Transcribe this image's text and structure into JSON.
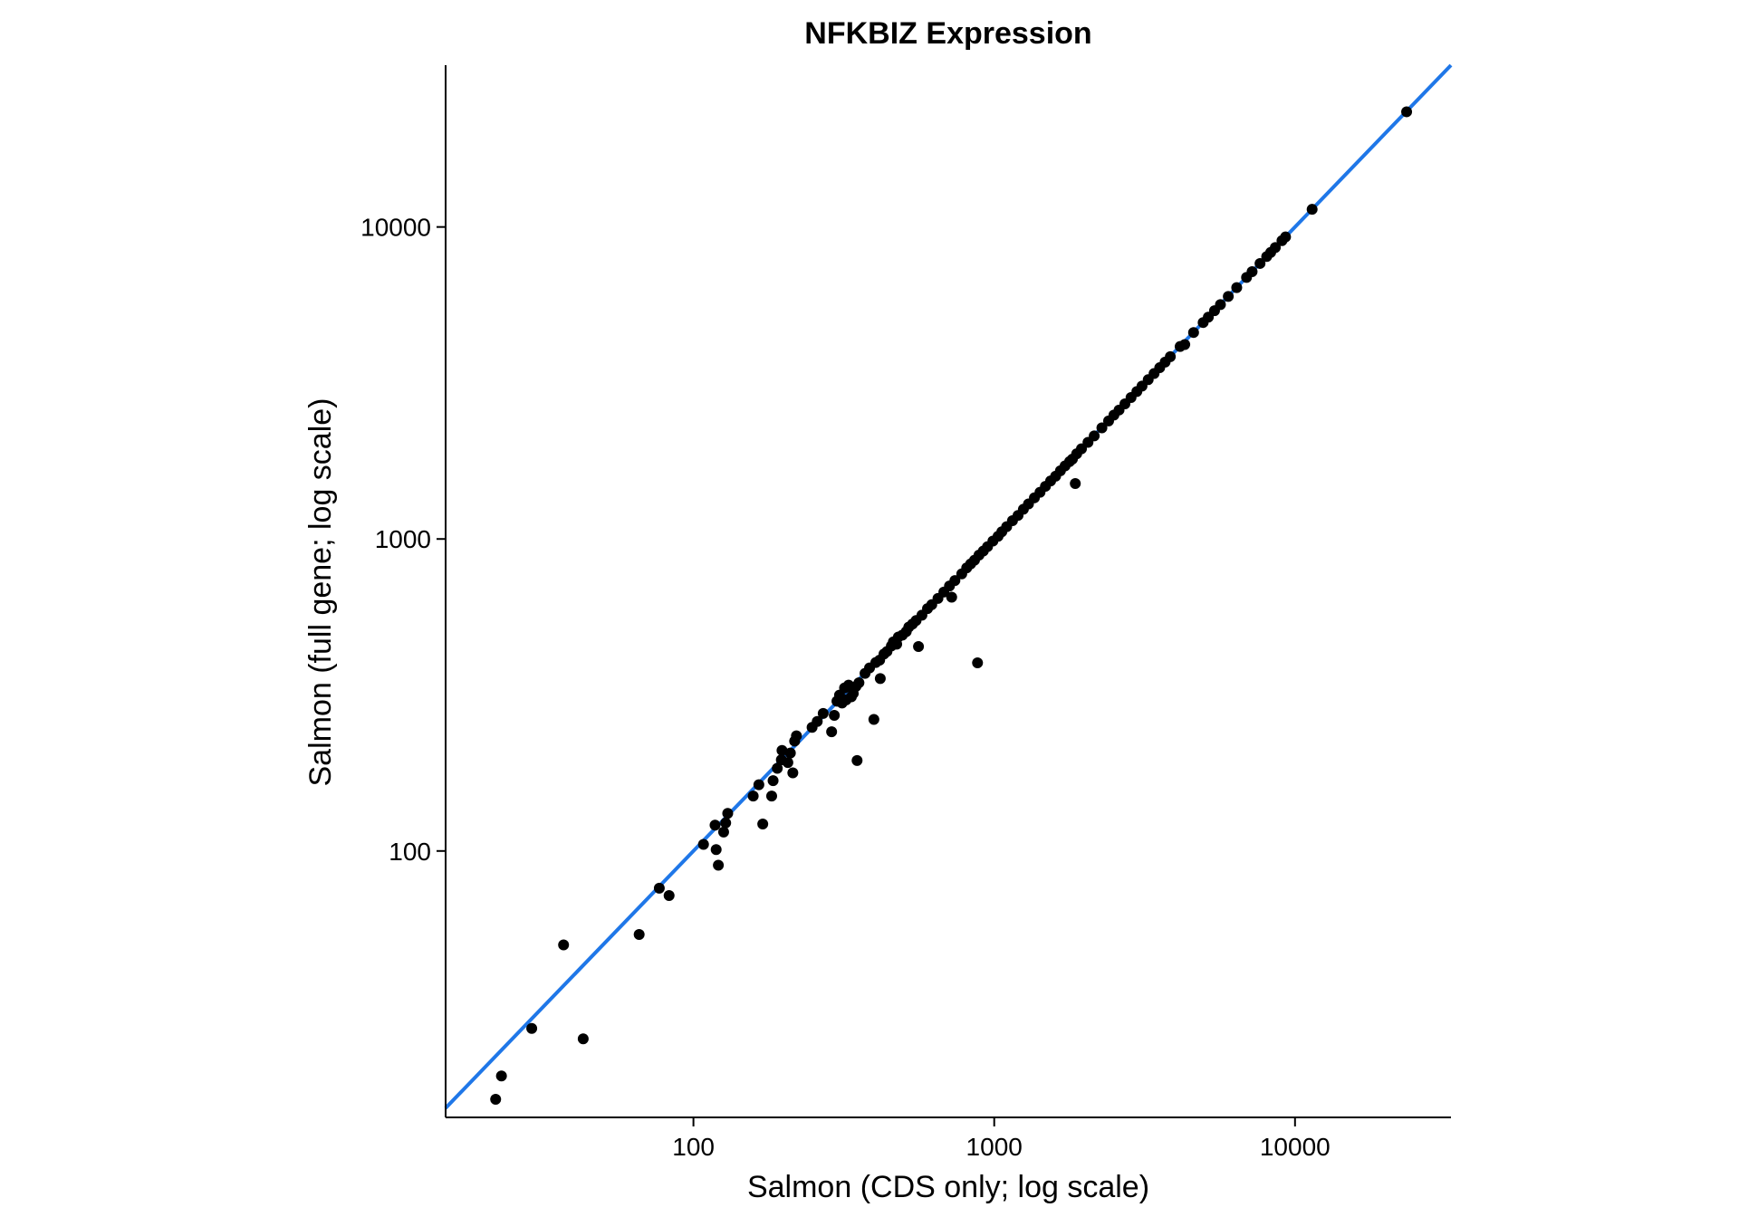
{
  "chart_data": {
    "type": "scatter",
    "title": "NFKBIZ Expression",
    "xlabel": "Salmon (CDS only; log scale)",
    "ylabel": "Salmon (full gene; log scale)",
    "x_scale": "log10",
    "y_scale": "log10",
    "xlim": [
      15,
      33000
    ],
    "ylim": [
      14,
      33000
    ],
    "x_ticks": [
      100,
      1000,
      10000
    ],
    "y_ticks": [
      100,
      1000,
      10000
    ],
    "x_tick_labels": [
      "100",
      "1000",
      "10000"
    ],
    "y_tick_labels": [
      "100",
      "1000",
      "10000"
    ],
    "grid": false,
    "point_color": "#000000",
    "line_color": "#1f77e8",
    "reference_line": {
      "type": "identity",
      "slope": 1,
      "intercept": 0
    },
    "points": [
      [
        22,
        16
      ],
      [
        23,
        19
      ],
      [
        29,
        27
      ],
      [
        37,
        50
      ],
      [
        43,
        25
      ],
      [
        66,
        54
      ],
      [
        77,
        76
      ],
      [
        83,
        72
      ],
      [
        108,
        105
      ],
      [
        118,
        121
      ],
      [
        119,
        101
      ],
      [
        121,
        90
      ],
      [
        126,
        115
      ],
      [
        128,
        123
      ],
      [
        130,
        132
      ],
      [
        158,
        150
      ],
      [
        165,
        163
      ],
      [
        170,
        122
      ],
      [
        182,
        150
      ],
      [
        184,
        168
      ],
      [
        190,
        184
      ],
      [
        196,
        196
      ],
      [
        197,
        210
      ],
      [
        206,
        192
      ],
      [
        210,
        206
      ],
      [
        214,
        178
      ],
      [
        217,
        225
      ],
      [
        220,
        234
      ],
      [
        248,
        249
      ],
      [
        258,
        260
      ],
      [
        270,
        276
      ],
      [
        288,
        241
      ],
      [
        294,
        272
      ],
      [
        300,
        302
      ],
      [
        306,
        316
      ],
      [
        312,
        298
      ],
      [
        318,
        333
      ],
      [
        322,
        305
      ],
      [
        328,
        340
      ],
      [
        335,
        312
      ],
      [
        340,
        320
      ],
      [
        347,
        337
      ],
      [
        350,
        195
      ],
      [
        355,
        346
      ],
      [
        372,
        371
      ],
      [
        385,
        386
      ],
      [
        398,
        264
      ],
      [
        404,
        402
      ],
      [
        416,
        409
      ],
      [
        418,
        357
      ],
      [
        430,
        428
      ],
      [
        440,
        436
      ],
      [
        455,
        454
      ],
      [
        462,
        468
      ],
      [
        474,
        460
      ],
      [
        480,
        485
      ],
      [
        495,
        492
      ],
      [
        510,
        505
      ],
      [
        520,
        522
      ],
      [
        535,
        534
      ],
      [
        550,
        548
      ],
      [
        560,
        452
      ],
      [
        575,
        570
      ],
      [
        600,
        598
      ],
      [
        620,
        616
      ],
      [
        650,
        645
      ],
      [
        680,
        676
      ],
      [
        710,
        707
      ],
      [
        722,
        651
      ],
      [
        740,
        736
      ],
      [
        780,
        773
      ],
      [
        810,
        808
      ],
      [
        835,
        832
      ],
      [
        860,
        855
      ],
      [
        880,
        401
      ],
      [
        890,
        888
      ],
      [
        920,
        915
      ],
      [
        950,
        945
      ],
      [
        990,
        985
      ],
      [
        1030,
        1020
      ],
      [
        1060,
        1055
      ],
      [
        1100,
        1095
      ],
      [
        1150,
        1145
      ],
      [
        1200,
        1190
      ],
      [
        1250,
        1245
      ],
      [
        1300,
        1295
      ],
      [
        1360,
        1355
      ],
      [
        1420,
        1412
      ],
      [
        1480,
        1475
      ],
      [
        1540,
        1535
      ],
      [
        1600,
        1590
      ],
      [
        1660,
        1655
      ],
      [
        1720,
        1715
      ],
      [
        1780,
        1770
      ],
      [
        1820,
        1803
      ],
      [
        1860,
        1505
      ],
      [
        1880,
        1875
      ],
      [
        1950,
        1945
      ],
      [
        2050,
        2040
      ],
      [
        2150,
        2140
      ],
      [
        2280,
        2270
      ],
      [
        2400,
        2390
      ],
      [
        2500,
        2495
      ],
      [
        2600,
        2590
      ],
      [
        2720,
        2710
      ],
      [
        2850,
        2840
      ],
      [
        2980,
        2970
      ],
      [
        3100,
        3090
      ],
      [
        3250,
        3240
      ],
      [
        3400,
        3390
      ],
      [
        3550,
        3540
      ],
      [
        3700,
        3690
      ],
      [
        3850,
        3840
      ],
      [
        4150,
        4140
      ],
      [
        4300,
        4200
      ],
      [
        4600,
        4590
      ],
      [
        4950,
        4940
      ],
      [
        5150,
        5140
      ],
      [
        5400,
        5390
      ],
      [
        5650,
        5640
      ],
      [
        6000,
        5990
      ],
      [
        6400,
        6390
      ],
      [
        6900,
        6890
      ],
      [
        7200,
        7190
      ],
      [
        7650,
        7640
      ],
      [
        8050,
        8040
      ],
      [
        8300,
        8290
      ],
      [
        8600,
        8590
      ],
      [
        9050,
        9040
      ],
      [
        9300,
        9290
      ],
      [
        11400,
        11390
      ],
      [
        23500,
        23400
      ]
    ]
  }
}
